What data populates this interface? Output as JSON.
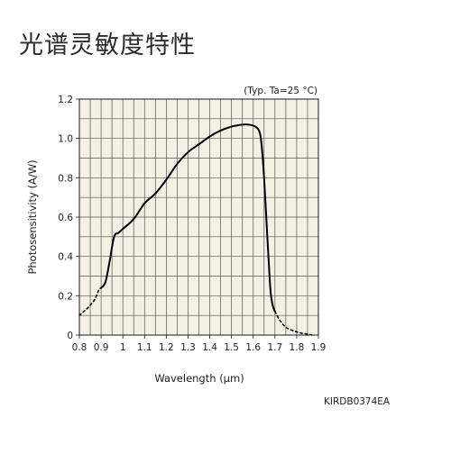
{
  "title": "光谱灵敏度特性",
  "doc_code": "KIRDB0374EA",
  "chart_data": {
    "type": "line",
    "title": "光谱灵敏度特性",
    "condition_note": "(Typ. Ta=25 °C)",
    "xlabel": "Wavelength (μm)",
    "ylabel": "Photosensitivity (A/W)",
    "xlim": [
      0.8,
      1.9
    ],
    "ylim": [
      0,
      1.2
    ],
    "x_ticks": [
      "0.8",
      "0.9",
      "1",
      "1.1",
      "1.2",
      "1.3",
      "1.4",
      "1.5",
      "1.6",
      "1.7",
      "1.8",
      "1.9"
    ],
    "y_ticks": [
      "0",
      "0.2",
      "0.4",
      "0.6",
      "0.8",
      "1.0",
      "1.2"
    ],
    "grid": true,
    "series": [
      {
        "style": "dashed",
        "x": [
          0.8,
          0.84,
          0.87,
          0.89,
          0.9
        ],
        "y": [
          0.1,
          0.14,
          0.18,
          0.23,
          0.24
        ]
      },
      {
        "style": "solid",
        "x": [
          0.9,
          0.92,
          0.94,
          0.96,
          0.98,
          1.0,
          1.05,
          1.1,
          1.15,
          1.2,
          1.25,
          1.3,
          1.35,
          1.4,
          1.45,
          1.5,
          1.55,
          1.58,
          1.61,
          1.63,
          1.64,
          1.65,
          1.66,
          1.67,
          1.68,
          1.69,
          1.7
        ],
        "y": [
          0.24,
          0.27,
          0.38,
          0.5,
          0.52,
          0.54,
          0.59,
          0.67,
          0.72,
          0.79,
          0.87,
          0.93,
          0.97,
          1.01,
          1.04,
          1.06,
          1.07,
          1.07,
          1.06,
          1.03,
          0.95,
          0.8,
          0.6,
          0.4,
          0.22,
          0.15,
          0.12
        ]
      },
      {
        "style": "dashed",
        "x": [
          1.7,
          1.72,
          1.75,
          1.79,
          1.82,
          1.85,
          1.87
        ],
        "y": [
          0.12,
          0.08,
          0.04,
          0.02,
          0.01,
          0.005,
          0.0
        ]
      }
    ]
  }
}
